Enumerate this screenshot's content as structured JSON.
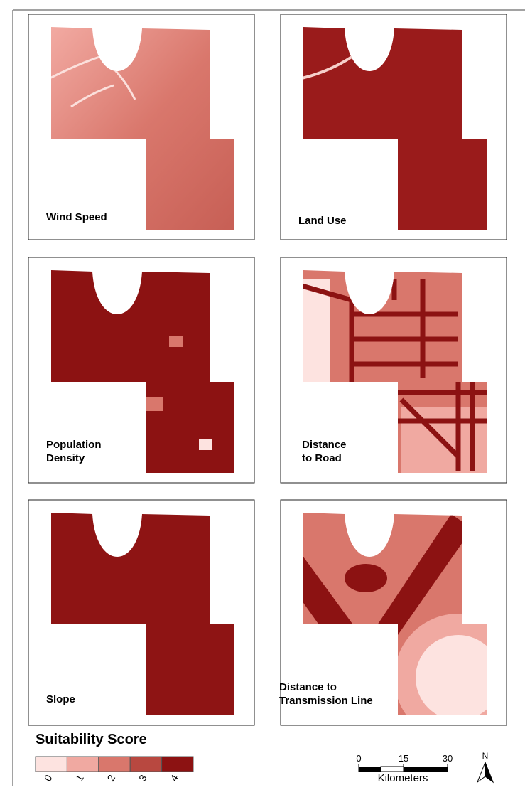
{
  "panels": [
    {
      "label": [
        "Wind Speed"
      ]
    },
    {
      "label": [
        "Land Use"
      ]
    },
    {
      "label": [
        "Population",
        "Density"
      ]
    },
    {
      "label": [
        "Distance",
        "to Road"
      ]
    },
    {
      "label": [
        "Slope"
      ]
    },
    {
      "label": [
        "Distance to",
        "Transmission Line"
      ]
    }
  ],
  "legend": {
    "title": "Suitability Score",
    "labels": [
      "0",
      "1",
      "2",
      "3",
      "4"
    ]
  },
  "scale_bar": {
    "ticks": [
      "0",
      "15",
      "30"
    ],
    "unit": "Kilometers"
  },
  "north_arrow": "N"
}
